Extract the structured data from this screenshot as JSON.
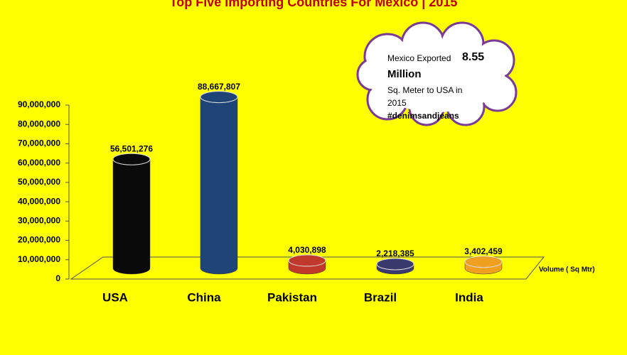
{
  "chart_data": {
    "type": "cylinder-bar",
    "title": "Top Five Importing Countries For Mexico | 2015",
    "categories": [
      "USA",
      "China",
      "Pakistan",
      "Brazil",
      "India"
    ],
    "series": [
      {
        "name": "Volume ( Sq Mtr)",
        "values": [
          56501276,
          88667807,
          4030898,
          2218385,
          3402459
        ],
        "value_labels": [
          "56,501,276",
          "88,667,807",
          "4,030,898",
          "2,218,385",
          "3,402,459"
        ],
        "colors": [
          "#0a0a0a",
          "#1f4478",
          "#c0392b",
          "#3b3a6e",
          "#f0a020"
        ]
      }
    ],
    "ylim": [
      0,
      90000000
    ],
    "yticks": [
      0,
      {
        "value": 10000000,
        "label": "10,000,000"
      },
      {
        "value": 20000000,
        "label": "20,000,000"
      },
      {
        "value": 30000000,
        "label": "30,000,000"
      },
      {
        "value": 40000000,
        "label": "40,000,000"
      },
      {
        "value": 50000000,
        "label": "50,000,000"
      },
      {
        "value": 60000000,
        "label": "60,000,000"
      },
      {
        "value": 70000000,
        "label": "70,000,000"
      },
      {
        "value": 80000000,
        "label": "80,000,000"
      },
      {
        "value": 90000000,
        "label": "90,000,000"
      }
    ],
    "annotation": [
      "Mexico Exported",
      "8.55",
      "Million",
      "Sq. Meter to USA in",
      "2015",
      "#denimsandjeans"
    ]
  }
}
